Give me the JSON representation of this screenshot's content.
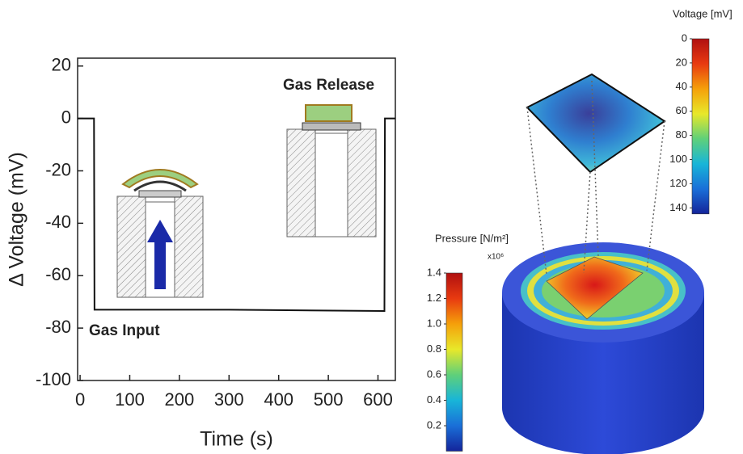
{
  "chart_data": [
    {
      "type": "line",
      "xlabel": "Time (s)",
      "ylabel": "Δ Voltage (mV)",
      "x": [
        -5,
        28,
        29,
        300,
        613,
        614,
        635
      ],
      "values": [
        0,
        0,
        -73,
        -73,
        -73.5,
        0,
        0
      ],
      "color": "#111111",
      "xlim": [
        -5,
        635
      ],
      "xticks": [
        0,
        100,
        200,
        300,
        400,
        500,
        600
      ],
      "ylim": [
        -100,
        23
      ],
      "yticks": [
        -100,
        -80,
        -60,
        -40,
        -20,
        0,
        20
      ],
      "annotations": [
        "Gas Release",
        "Gas Input"
      ]
    },
    {
      "type": "colorbar",
      "label": "Voltage [mV]",
      "inverted": true,
      "ylim": [
        0,
        145
      ],
      "yticks": [
        0,
        20,
        40,
        60,
        80,
        100,
        120,
        140
      ],
      "colors": [
        "#b01010",
        "#e83a10",
        "#f5a00a",
        "#e8e82a",
        "#5fd07a",
        "#18b5d8",
        "#1a6fd8",
        "#14249a"
      ]
    },
    {
      "type": "colorbar",
      "label": "Pressure [N/m²]",
      "note": "x10⁶",
      "inverted": false,
      "ylim": [
        0,
        1.4
      ],
      "yticks": [
        0.2,
        0.4,
        {
          "value": 0.6,
          "label": "0.6"
        },
        0.8,
        {
          "value": 1,
          "label": "1.0"
        },
        1.2,
        1.4
      ],
      "colors": [
        "#14249a",
        "#1a6fd8",
        "#18b5d8",
        "#5fd07a",
        "#e8e82a",
        "#f5a00a",
        "#e83a10",
        "#b01010"
      ]
    }
  ]
}
